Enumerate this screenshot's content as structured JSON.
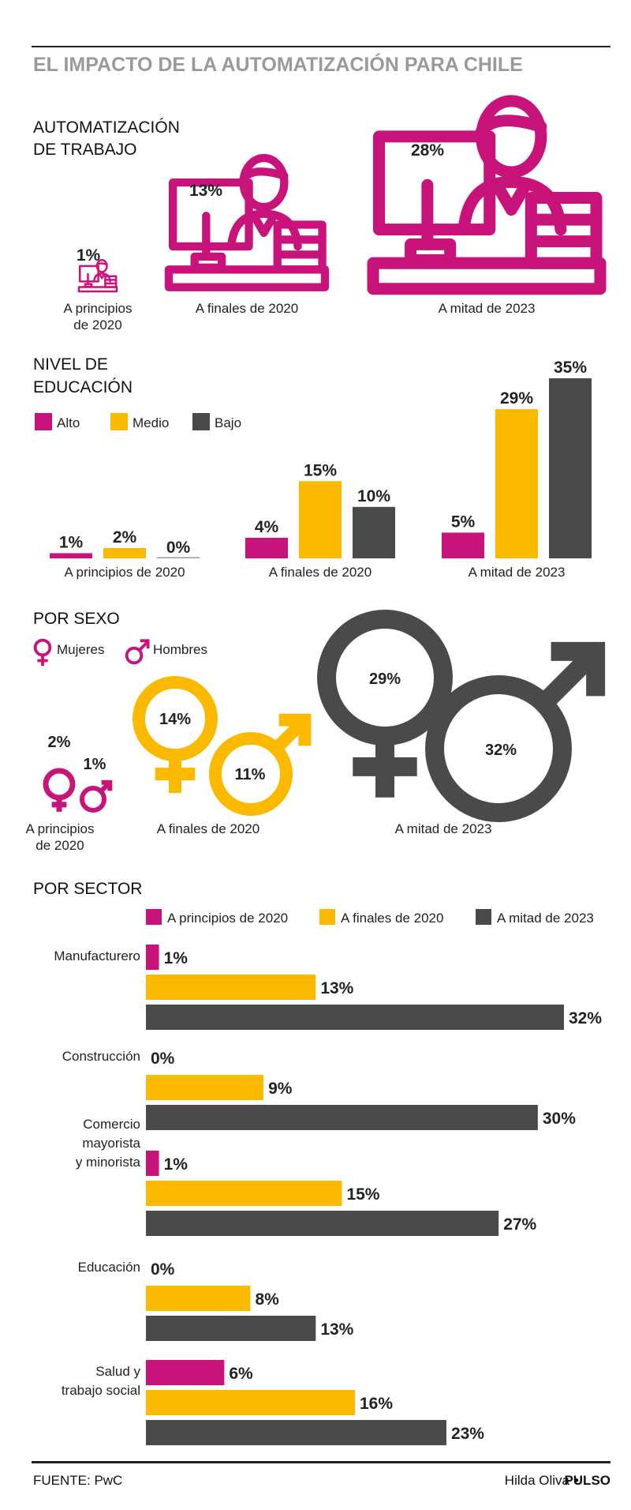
{
  "title": "EL IMPACTO DE LA AUTOMATIZACIÓN PARA CHILE",
  "colors": {
    "alto": "#c8147a",
    "medio": "#fbb900",
    "bajo": "#4a4a4a",
    "rule": "#222222",
    "title": "#9a9a9a"
  },
  "sections": {
    "automatizacion_line1": "AUTOMATIZACIÓN",
    "automatizacion_line2": "DE TRABAJO",
    "educacion_line1": "NIVEL DE",
    "educacion_line2": "EDUCACIÓN",
    "sexo": "POR SEXO",
    "sector": "POR SECTOR"
  },
  "periods": {
    "p1_line1": "A principios",
    "p1_line2": "de 2020",
    "p1": "A principios de 2020",
    "p2": "A finales de 2020",
    "p3": "A mitad de 2023"
  },
  "legend_educacion": {
    "alto": "Alto",
    "medio": "Medio",
    "bajo": "Bajo"
  },
  "legend_sexo": {
    "mujeres": "Mujeres",
    "hombres": "Hombres"
  },
  "legend_sector": {
    "p1": "A principios de 2020",
    "p2": "A finales de 2020",
    "p3": "A mitad de 2023"
  },
  "footer": {
    "source": "FUENTE: PwC",
    "author": "Hilda Oliva",
    "brand": "PULSO"
  },
  "chart_data": [
    {
      "type": "icon-size",
      "title": "AUTOMATIZACIÓN DE TRABAJO",
      "categories": [
        "A principios de 2020",
        "A finales de 2020",
        "A mitad de 2023"
      ],
      "values": [
        1,
        13,
        28
      ],
      "labels": [
        "1%",
        "13%",
        "28%"
      ],
      "unit": "%"
    },
    {
      "type": "bar",
      "title": "NIVEL DE EDUCACIÓN",
      "categories": [
        "A principios de 2020",
        "A finales de 2020",
        "A mitad de 2023"
      ],
      "series": [
        {
          "name": "Alto",
          "values": [
            1,
            4,
            5
          ],
          "labels": [
            "1%",
            "4%",
            "5%"
          ]
        },
        {
          "name": "Medio",
          "values": [
            2,
            15,
            29
          ],
          "labels": [
            "2%",
            "15%",
            "29%"
          ]
        },
        {
          "name": "Bajo",
          "values": [
            0,
            10,
            35
          ],
          "labels": [
            "0%",
            "10%",
            "35%"
          ]
        }
      ],
      "ylim": [
        0,
        35
      ],
      "legend": "top-left"
    },
    {
      "type": "icon-size",
      "title": "POR SEXO",
      "categories": [
        "A principios de 2020",
        "A finales de 2020",
        "A mitad de 2023"
      ],
      "series": [
        {
          "name": "Mujeres",
          "values": [
            2,
            14,
            29
          ],
          "labels": [
            "2%",
            "14%",
            "29%"
          ]
        },
        {
          "name": "Hombres",
          "values": [
            1,
            11,
            32
          ],
          "labels": [
            "1%",
            "11%",
            "32%"
          ]
        }
      ]
    },
    {
      "type": "bar",
      "orientation": "horizontal",
      "title": "POR SECTOR",
      "sectors": [
        {
          "lines": [
            "Manufacturero"
          ],
          "values": [
            1,
            13,
            32
          ],
          "labels": [
            "1%",
            "13%",
            "32%"
          ]
        },
        {
          "lines": [
            "Construcción"
          ],
          "values": [
            0,
            9,
            30
          ],
          "labels": [
            "0%",
            "9%",
            "30%"
          ]
        },
        {
          "lines": [
            "Comercio",
            "mayorista",
            "y minorista"
          ],
          "values": [
            1,
            15,
            27
          ],
          "labels": [
            "1%",
            "15%",
            "27%"
          ]
        },
        {
          "lines": [
            "Educación"
          ],
          "values": [
            0,
            8,
            13
          ],
          "labels": [
            "0%",
            "8%",
            "13%"
          ]
        },
        {
          "lines": [
            "Salud y",
            "trabajo social"
          ],
          "values": [
            6,
            16,
            23
          ],
          "labels": [
            "6%",
            "16%",
            "23%"
          ]
        }
      ],
      "series_names": [
        "A principios de 2020",
        "A finales de 2020",
        "A mitad de 2023"
      ],
      "xlim": [
        0,
        32
      ],
      "legend": "top"
    }
  ]
}
